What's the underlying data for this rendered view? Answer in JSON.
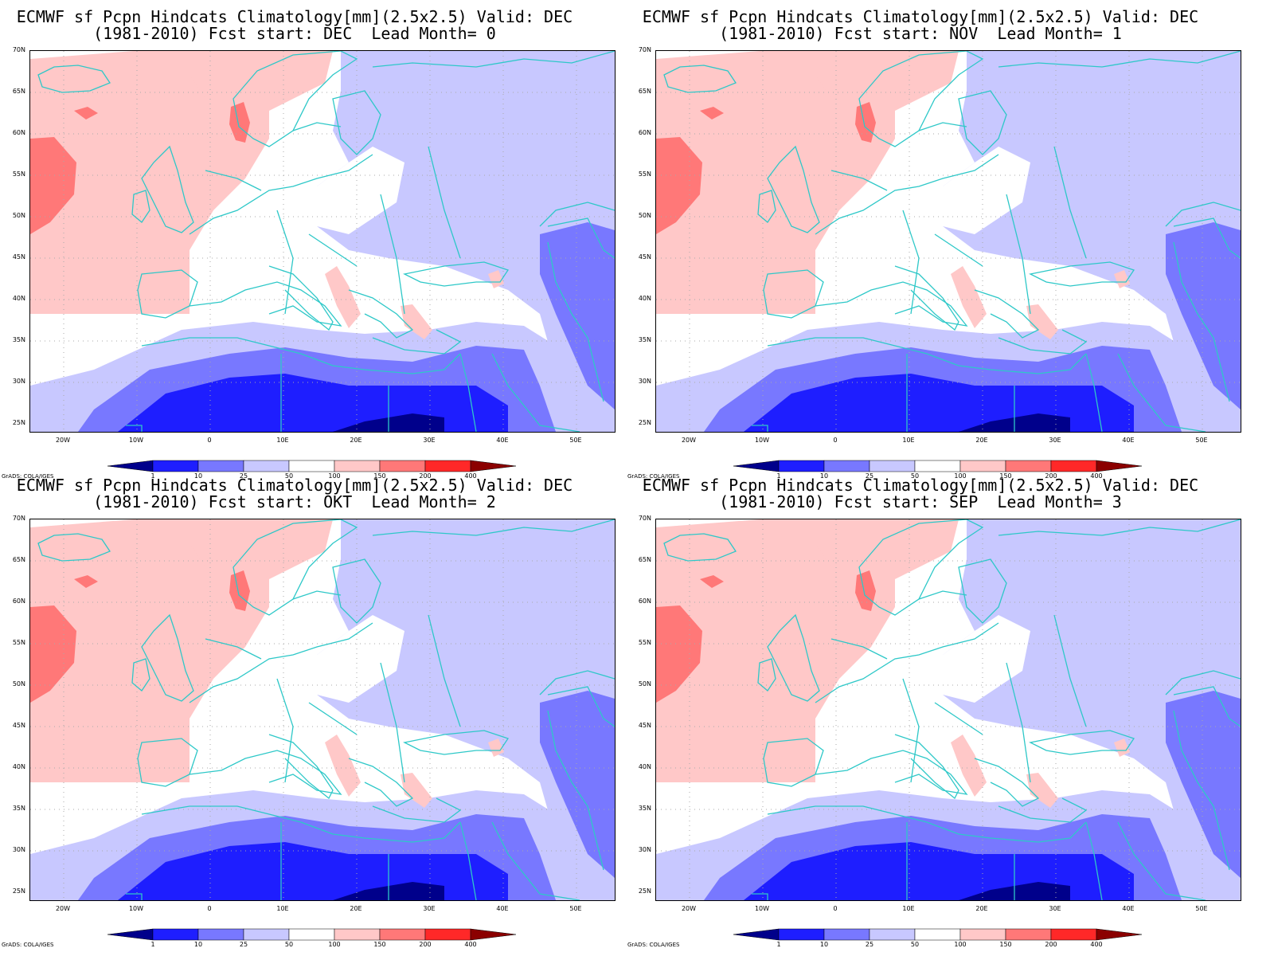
{
  "panels": [
    {
      "title_line1": "ECMWF sf Pcpn Hindcats Climatology[mm](2.5x2.5) Valid: DEC",
      "title_line2": "(1981-2010) Fcst start: DEC  Lead Month= 0"
    },
    {
      "title_line1": "ECMWF sf Pcpn Hindcats Climatology[mm](2.5x2.5) Valid: DEC",
      "title_line2": "(1981-2010) Fcst start: NOV  Lead Month= 1"
    },
    {
      "title_line1": "ECMWF sf Pcpn Hindcats Climatology[mm](2.5x2.5) Valid: DEC",
      "title_line2": "(1981-2010) Fcst start: OKT  Lead Month= 2"
    },
    {
      "title_line1": "ECMWF sf Pcpn Hindcats Climatology[mm](2.5x2.5) Valid: DEC",
      "title_line2": "(1981-2010) Fcst start: SEP  Lead Month= 3"
    }
  ],
  "lat_labels": [
    "70N",
    "65N",
    "60N",
    "55N",
    "50N",
    "45N",
    "40N",
    "35N",
    "30N",
    "25N"
  ],
  "lon_labels": [
    "20W",
    "10W",
    "0",
    "10E",
    "20E",
    "30E",
    "40E",
    "50E"
  ],
  "legend": {
    "labels": [
      "1",
      "10",
      "25",
      "50",
      "100",
      "150",
      "200",
      "400"
    ],
    "colors": [
      "#00008b",
      "#1e1eff",
      "#7878ff",
      "#c8c8ff",
      "#ffffff",
      "#ffc8c8",
      "#ff7878",
      "#ff2828",
      "#8b0000"
    ]
  },
  "credit": "GrADS: COLA/IGES",
  "colors": {
    "coastline": "#2ec8c8",
    "grid": "#aaaaaa"
  }
}
